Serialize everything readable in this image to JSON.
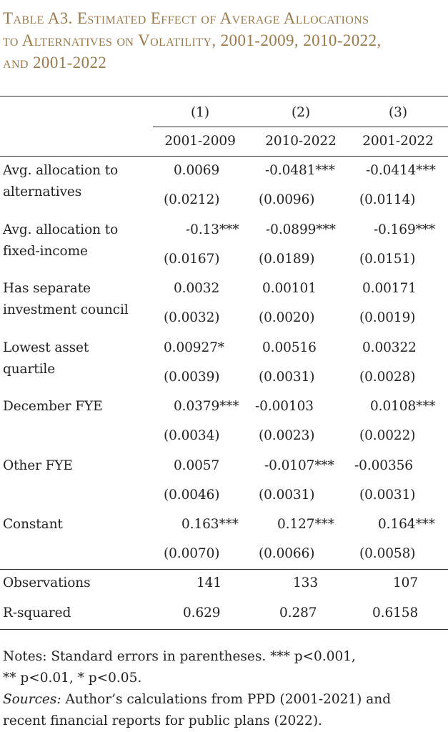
{
  "title": {
    "line1": "Table A3. Estimated Effect of Average Allocations",
    "line2": "to Alternatives on Volatility, 2001-2009, 2010-2022,",
    "line3": "and 2001-2022"
  },
  "columns": [
    {
      "number": "(1)",
      "period": "2001-2009"
    },
    {
      "number": "(2)",
      "period": "2010-2022"
    },
    {
      "number": "(3)",
      "period": "2001-2022"
    }
  ],
  "rows": [
    {
      "label1": "Avg. allocation to",
      "label2": "alternatives",
      "coef": [
        "0.0069",
        "-0.0481***",
        "-0.0414***"
      ],
      "se": [
        "(0.0212)",
        "(0.0096)",
        "(0.0114)"
      ]
    },
    {
      "label1": "Avg. allocation to",
      "label2": "fixed-income",
      "coef": [
        "-0.13***",
        "-0.0899***",
        "-0.169***"
      ],
      "se": [
        "(0.0167)",
        "(0.0189)",
        "(0.0151)"
      ]
    },
    {
      "label1": "Has separate",
      "label2": "investment council",
      "coef": [
        "0.0032",
        "0.00101",
        "0.00171"
      ],
      "se": [
        "(0.0032)",
        "(0.0020)",
        "(0.0019)"
      ]
    },
    {
      "label1": "Lowest asset",
      "label2": "quartile",
      "coef": [
        "0.00927*",
        "0.00516",
        "0.00322"
      ],
      "se": [
        "(0.0039)",
        "(0.0031)",
        "(0.0028)"
      ]
    },
    {
      "label1": "December FYE",
      "label2": "",
      "coef": [
        "0.0379***",
        "-0.00103",
        "0.0108***"
      ],
      "se": [
        "(0.0034)",
        "(0.0023)",
        "(0.0022)"
      ]
    },
    {
      "label1": "Other FYE",
      "label2": "",
      "coef": [
        "0.0057",
        "-0.0107***",
        "-0.00356"
      ],
      "se": [
        "(0.0046)",
        "(0.0031)",
        "(0.0031)"
      ]
    },
    {
      "label1": "Constant",
      "label2": "",
      "coef": [
        "0.163***",
        "0.127***",
        "0.164***"
      ],
      "se": [
        "(0.0070)",
        "(0.0066)",
        "(0.0058)"
      ]
    }
  ],
  "stats": [
    {
      "label": "Observations",
      "values": [
        "141",
        "133",
        "107"
      ]
    },
    {
      "label": "R-squared",
      "values": [
        "0.629",
        "0.287",
        "0.6158"
      ]
    }
  ],
  "notes": {
    "line1": "Notes: Standard errors in parentheses.  *** p<0.001,",
    "line2": "** p<0.01, * p<0.05.",
    "sources_label": "Sources:",
    "sources_text1": " Author’s calculations from PPD (2001-2021) and",
    "sources_text2": "recent financial reports for public plans (2022)."
  }
}
